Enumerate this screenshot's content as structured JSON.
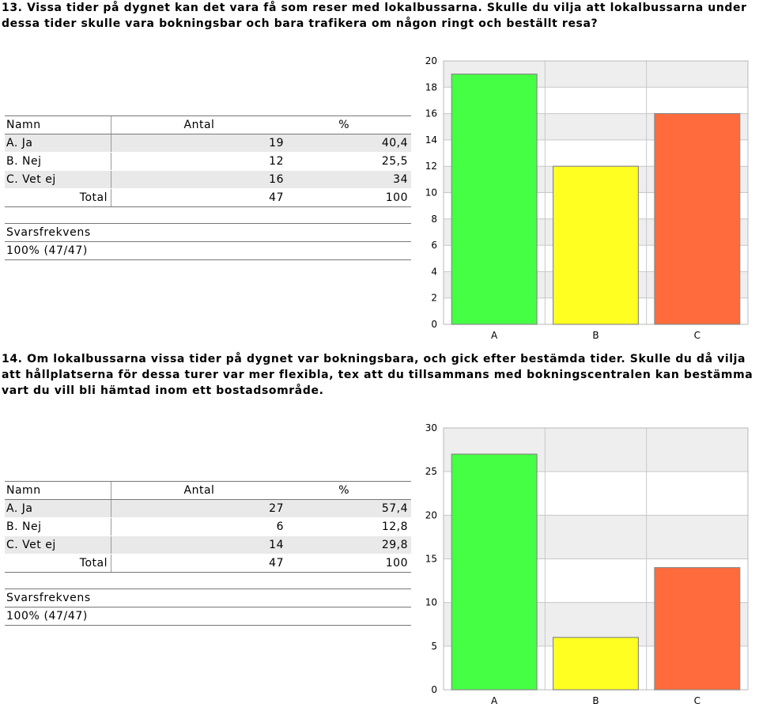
{
  "q13": {
    "title": "13. Vissa tider på dygnet kan det vara få som reser med lokalbussarna. Skulle du vilja att lokalbussarna under dessa tider skulle vara bokningsbar och bara trafikera om någon ringt och beställt resa?",
    "headers": {
      "name": "Namn",
      "count": "Antal",
      "pct": "%"
    },
    "rows": [
      {
        "name": "A. Ja",
        "count": "19",
        "pct": "40,4"
      },
      {
        "name": "B. Nej",
        "count": "12",
        "pct": "25,5"
      },
      {
        "name": "C. Vet ej",
        "count": "16",
        "pct": "34"
      }
    ],
    "total": {
      "label": "Total",
      "count": "47",
      "pct": "100"
    },
    "freq": {
      "label": "Svarsfrekvens",
      "value": "100% (47/47)"
    }
  },
  "q14": {
    "title": "14. Om lokalbussarna vissa tider på dygnet var bokningsbara, och gick efter bestämda tider. Skulle du då vilja att hållplatserna för dessa turer var mer flexibla, tex att du tillsammans med bokningscentralen kan bestämma vart du vill bli hämtad inom ett bostadsområde.",
    "headers": {
      "name": "Namn",
      "count": "Antal",
      "pct": "%"
    },
    "rows": [
      {
        "name": "A. Ja",
        "count": "27",
        "pct": "57,4"
      },
      {
        "name": "B. Nej",
        "count": "6",
        "pct": "12,8"
      },
      {
        "name": "C. Vet ej",
        "count": "14",
        "pct": "29,8"
      }
    ],
    "total": {
      "label": "Total",
      "count": "47",
      "pct": "100"
    },
    "freq": {
      "label": "Svarsfrekvens",
      "value": "100% (47/47)"
    }
  },
  "chart_data": [
    {
      "type": "bar",
      "categories": [
        "A",
        "B",
        "C"
      ],
      "values": [
        19,
        12,
        16
      ],
      "colors": [
        "#44ff44",
        "#ffff22",
        "#ff6b3c"
      ],
      "ylim": [
        0,
        20
      ],
      "yticks": [
        0,
        2,
        4,
        6,
        8,
        10,
        12,
        14,
        16,
        18,
        20
      ],
      "grid": true
    },
    {
      "type": "bar",
      "categories": [
        "A",
        "B",
        "C"
      ],
      "values": [
        27,
        6,
        14
      ],
      "colors": [
        "#44ff44",
        "#ffff22",
        "#ff6b3c"
      ],
      "ylim": [
        0,
        30
      ],
      "yticks": [
        0,
        5,
        10,
        15,
        20,
        25,
        30
      ],
      "grid": true
    }
  ]
}
